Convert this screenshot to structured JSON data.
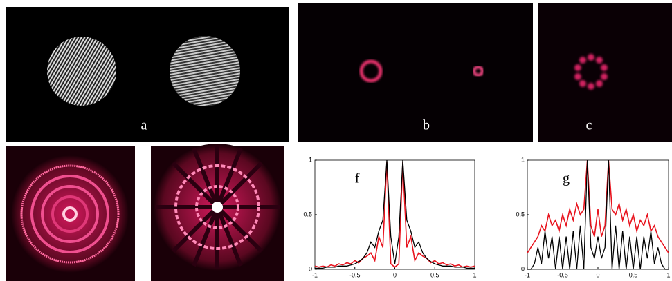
{
  "panels": {
    "a": "a",
    "b": "b",
    "c": "c"
  },
  "chart_data": [
    {
      "type": "line",
      "annotation": "f",
      "x": [
        -1,
        -0.95,
        -0.9,
        -0.85,
        -0.8,
        -0.75,
        -0.7,
        -0.65,
        -0.6,
        -0.55,
        -0.5,
        -0.45,
        -0.4,
        -0.35,
        -0.3,
        -0.25,
        -0.2,
        -0.15,
        -0.1,
        -0.05,
        0,
        0.05,
        0.1,
        0.15,
        0.2,
        0.25,
        0.3,
        0.35,
        0.4,
        0.45,
        0.5,
        0.55,
        0.6,
        0.65,
        0.7,
        0.75,
        0.8,
        0.85,
        0.9,
        0.95,
        1
      ],
      "series": [
        {
          "color": "#000000",
          "values": [
            0.01,
            0.01,
            0.01,
            0.02,
            0.02,
            0.02,
            0.03,
            0.03,
            0.03,
            0.04,
            0.05,
            0.07,
            0.1,
            0.15,
            0.25,
            0.2,
            0.35,
            0.45,
            1.0,
            0.3,
            0.05,
            0.3,
            1.0,
            0.45,
            0.35,
            0.2,
            0.25,
            0.15,
            0.1,
            0.07,
            0.05,
            0.04,
            0.03,
            0.03,
            0.03,
            0.02,
            0.02,
            0.02,
            0.01,
            0.01,
            0.01
          ]
        },
        {
          "color": "#e8141e",
          "values": [
            0.03,
            0.02,
            0.03,
            0.02,
            0.04,
            0.03,
            0.05,
            0.04,
            0.06,
            0.05,
            0.08,
            0.06,
            0.1,
            0.12,
            0.15,
            0.08,
            0.3,
            0.2,
            0.98,
            0.05,
            0.02,
            0.05,
            0.98,
            0.2,
            0.3,
            0.08,
            0.15,
            0.12,
            0.1,
            0.06,
            0.08,
            0.05,
            0.06,
            0.04,
            0.05,
            0.03,
            0.04,
            0.02,
            0.03,
            0.02,
            0.03
          ]
        }
      ],
      "xlim": [
        -1,
        1
      ],
      "ylim": [
        0,
        1
      ],
      "xticks": [
        -1,
        -0.5,
        0,
        0.5,
        1
      ],
      "yticks": [
        0,
        0.5,
        1
      ]
    },
    {
      "type": "line",
      "annotation": "g",
      "x": [
        -1,
        -0.95,
        -0.9,
        -0.85,
        -0.8,
        -0.75,
        -0.7,
        -0.65,
        -0.6,
        -0.55,
        -0.5,
        -0.45,
        -0.4,
        -0.35,
        -0.3,
        -0.25,
        -0.2,
        -0.15,
        -0.1,
        -0.05,
        0,
        0.05,
        0.1,
        0.15,
        0.2,
        0.25,
        0.3,
        0.35,
        0.4,
        0.45,
        0.5,
        0.55,
        0.6,
        0.65,
        0.7,
        0.75,
        0.8,
        0.85,
        0.9,
        0.95,
        1
      ],
      "series": [
        {
          "color": "#000000",
          "values": [
            0,
            0,
            0.05,
            0.2,
            0.05,
            0.35,
            0.1,
            0.3,
            0,
            0.3,
            0,
            0.3,
            0,
            0.35,
            0,
            0.4,
            0,
            1.0,
            0.2,
            0.1,
            0.3,
            0.1,
            0.2,
            1.0,
            0,
            0.4,
            0,
            0.35,
            0,
            0.3,
            0,
            0.3,
            0,
            0.3,
            0.1,
            0.35,
            0.05,
            0.2,
            0.05,
            0,
            0
          ]
        },
        {
          "color": "#e8141e",
          "values": [
            0.15,
            0.2,
            0.25,
            0.3,
            0.4,
            0.35,
            0.5,
            0.4,
            0.45,
            0.35,
            0.5,
            0.4,
            0.55,
            0.45,
            0.6,
            0.5,
            0.55,
            1.0,
            0.4,
            0.3,
            0.55,
            0.3,
            0.4,
            1.0,
            0.55,
            0.5,
            0.6,
            0.45,
            0.55,
            0.4,
            0.5,
            0.35,
            0.45,
            0.4,
            0.5,
            0.35,
            0.4,
            0.3,
            0.25,
            0.2,
            0.15
          ]
        }
      ],
      "xlim": [
        -1,
        1
      ],
      "ylim": [
        0,
        1
      ],
      "xticks": [
        -1,
        -0.5,
        0,
        0.5,
        1
      ],
      "yticks": [
        0,
        0.5,
        1
      ]
    }
  ]
}
